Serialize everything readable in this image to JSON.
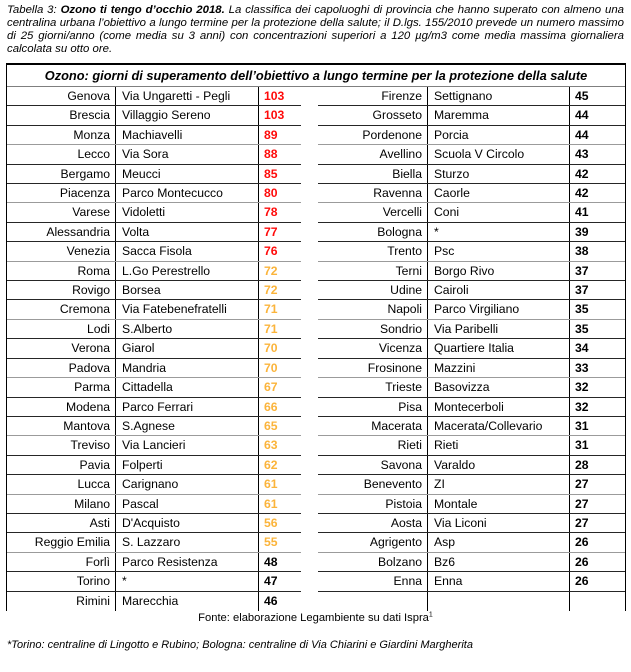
{
  "page": {
    "caption": {
      "prefix": "Tabella 3: ",
      "bold_title": "Ozono ti tengo d’occhio 2018.",
      "text": " La classifica dei capoluoghi di provincia che hanno superato con almeno una centralina urbana l’obiettivo a lungo termine per la protezione della salute; il D.lgs. 155/2010 prevede un numero massimo di 25 giorni/anno (come media su 3 anni) con concentrazioni superiori a 120 µg/m3 come media massima giornaliera calcolata su otto ore."
    },
    "table": {
      "title": "Ozono: giorni di superamento dell’obiettivo a lungo termine per la protezione della salute",
      "value_colors": {
        "red": "#ff0b0b",
        "orange": "#fbb43b",
        "black": "#000000"
      },
      "left_rows": [
        {
          "city": "Genova",
          "station": "Via Ungaretti - Pegli",
          "value": "103",
          "tone": "red"
        },
        {
          "city": "Brescia",
          "station": "Villaggio Sereno",
          "value": "103",
          "tone": "red"
        },
        {
          "city": "Monza",
          "station": "Machiavelli",
          "value": "89",
          "tone": "red"
        },
        {
          "city": "Lecco",
          "station": "Via Sora",
          "value": "88",
          "tone": "red"
        },
        {
          "city": "Bergamo",
          "station": "Meucci",
          "value": "85",
          "tone": "red"
        },
        {
          "city": "Piacenza",
          "station": "Parco Montecucco",
          "value": "80",
          "tone": "red"
        },
        {
          "city": "Varese",
          "station": "Vidoletti",
          "value": "78",
          "tone": "red"
        },
        {
          "city": "Alessandria",
          "station": "Volta",
          "value": "77",
          "tone": "red"
        },
        {
          "city": "Venezia",
          "station": "Sacca Fisola",
          "value": "76",
          "tone": "red"
        },
        {
          "city": "Roma",
          "station": "L.Go Perestrello",
          "value": "72",
          "tone": "orange"
        },
        {
          "city": "Rovigo",
          "station": "Borsea",
          "value": "72",
          "tone": "orange"
        },
        {
          "city": "Cremona",
          "station": "Via Fatebenefratelli",
          "value": "71",
          "tone": "orange"
        },
        {
          "city": "Lodi",
          "station": "S.Alberto",
          "value": "71",
          "tone": "orange"
        },
        {
          "city": "Verona",
          "station": "Giarol",
          "value": "70",
          "tone": "orange"
        },
        {
          "city": "Padova",
          "station": "Mandria",
          "value": "70",
          "tone": "orange"
        },
        {
          "city": "Parma",
          "station": "Cittadella",
          "value": "67",
          "tone": "orange"
        },
        {
          "city": "Modena",
          "station": "Parco Ferrari",
          "value": "66",
          "tone": "orange"
        },
        {
          "city": "Mantova",
          "station": "S.Agnese",
          "value": "65",
          "tone": "orange"
        },
        {
          "city": "Treviso",
          "station": "Via Lancieri",
          "value": "63",
          "tone": "orange"
        },
        {
          "city": "Pavia",
          "station": "Folperti",
          "value": "62",
          "tone": "orange"
        },
        {
          "city": "Lucca",
          "station": "Carignano",
          "value": "61",
          "tone": "orange"
        },
        {
          "city": "Milano",
          "station": "Pascal",
          "value": "61",
          "tone": "orange"
        },
        {
          "city": "Asti",
          "station": "D'Acquisto",
          "value": "56",
          "tone": "orange"
        },
        {
          "city": "Reggio Emilia",
          "station": "S. Lazzaro",
          "value": "55",
          "tone": "orange"
        },
        {
          "city": "Forlì",
          "station": "Parco Resistenza",
          "value": "48",
          "tone": "black"
        },
        {
          "city": "Torino",
          "station": "*",
          "value": "47",
          "tone": "black"
        },
        {
          "city": "Rimini",
          "station": "Marecchia",
          "value": "46",
          "tone": "black"
        }
      ],
      "right_rows": [
        {
          "city": "Firenze",
          "station": "Settignano",
          "value": "45",
          "tone": "black"
        },
        {
          "city": "Grosseto",
          "station": "Maremma",
          "value": "44",
          "tone": "black"
        },
        {
          "city": "Pordenone",
          "station": "Porcia",
          "value": "44",
          "tone": "black"
        },
        {
          "city": "Avellino",
          "station": "Scuola V Circolo",
          "value": "43",
          "tone": "black"
        },
        {
          "city": "Biella",
          "station": "Sturzo",
          "value": "42",
          "tone": "black"
        },
        {
          "city": "Ravenna",
          "station": "Caorle",
          "value": "42",
          "tone": "black"
        },
        {
          "city": "Vercelli",
          "station": "Coni",
          "value": "41",
          "tone": "black"
        },
        {
          "city": "Bologna",
          "station": "*",
          "value": "39",
          "tone": "black"
        },
        {
          "city": "Trento",
          "station": "Psc",
          "value": "38",
          "tone": "black"
        },
        {
          "city": "Terni",
          "station": "Borgo Rivo",
          "value": "37",
          "tone": "black"
        },
        {
          "city": "Udine",
          "station": "Cairoli",
          "value": "37",
          "tone": "black"
        },
        {
          "city": "Napoli",
          "station": "Parco Virgiliano",
          "value": "35",
          "tone": "black"
        },
        {
          "city": "Sondrio",
          "station": "Via Paribelli",
          "value": "35",
          "tone": "black"
        },
        {
          "city": "Vicenza",
          "station": "Quartiere Italia",
          "value": "34",
          "tone": "black"
        },
        {
          "city": "Frosinone",
          "station": "Mazzini",
          "value": "33",
          "tone": "black"
        },
        {
          "city": "Trieste",
          "station": "Basovizza",
          "value": "32",
          "tone": "black"
        },
        {
          "city": "Pisa",
          "station": "Montecerboli",
          "value": "32",
          "tone": "black"
        },
        {
          "city": "Macerata",
          "station": "Macerata/Collevario",
          "value": "31",
          "tone": "black"
        },
        {
          "city": "Rieti",
          "station": "Rieti",
          "value": "31",
          "tone": "black"
        },
        {
          "city": "Savona",
          "station": "Varaldo",
          "value": "28",
          "tone": "black"
        },
        {
          "city": "Benevento",
          "station": "ZI",
          "value": "27",
          "tone": "black"
        },
        {
          "city": "Pistoia",
          "station": "Montale",
          "value": "27",
          "tone": "black"
        },
        {
          "city": "Aosta",
          "station": "Via Liconi",
          "value": "27",
          "tone": "black"
        },
        {
          "city": "Agrigento",
          "station": "Asp",
          "value": "26",
          "tone": "black"
        },
        {
          "city": "Bolzano",
          "station": "Bz6",
          "value": "26",
          "tone": "black"
        },
        {
          "city": "Enna",
          "station": "Enna",
          "value": "26",
          "tone": "black"
        },
        {
          "city": "",
          "station": "",
          "value": "",
          "tone": "black"
        }
      ]
    },
    "source": {
      "text": "Fonte: elaborazione Legambiente su dati Ispra",
      "superscript": "1"
    },
    "footnote": "*Torino: centraline di Lingotto e Rubino; Bologna: centraline di Via Chiarini e Giardini Margherita"
  }
}
